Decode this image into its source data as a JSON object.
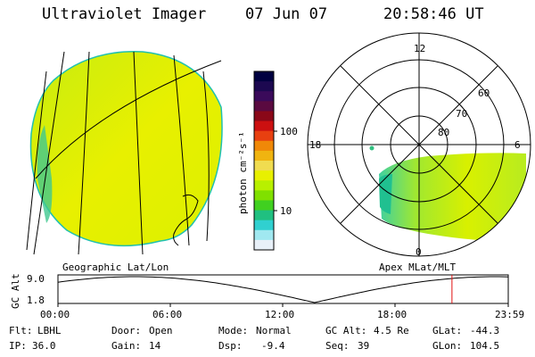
{
  "header": {
    "instrument": "Ultraviolet Imager",
    "date": "07 Jun 07",
    "time": "20:58:46 UT"
  },
  "left_panel": {
    "label": "Geographic Lat/Lon"
  },
  "right_panel": {
    "label": "Apex MLat/MLT",
    "mlt_labels": {
      "top": "12",
      "left": "18",
      "right": "6",
      "bottom": "0"
    },
    "lat_labels": [
      "60",
      "70",
      "80"
    ]
  },
  "colorbar": {
    "unit": "photon cm⁻²s⁻¹",
    "ticks": [
      "100",
      "10"
    ],
    "colors": [
      "#000040",
      "#1c0850",
      "#3a0a5a",
      "#5a0a40",
      "#8a0818",
      "#cc1010",
      "#e84010",
      "#f08808",
      "#f0b410",
      "#f0dc50",
      "#e8f000",
      "#b8f000",
      "#80e000",
      "#40d020",
      "#20c080",
      "#30d0d0",
      "#a0e8f0",
      "#e8f0f8"
    ]
  },
  "altitude_plot": {
    "ylabel": "GC Alt",
    "y_top": "9.0",
    "y_bottom": "1.8",
    "x_ticks": [
      "00:00",
      "06:00",
      "12:00",
      "18:00",
      "23:59"
    ],
    "current_time_fraction": 0.875
  },
  "info": {
    "flt_label": "Flt:",
    "flt_value": "LBHL",
    "ip_label": "IP:",
    "ip_value": "36.0",
    "door_label": "Door:",
    "door_value": "Open",
    "gain_label": "Gain:",
    "gain_value": "14",
    "mode_label": "Mode:",
    "mode_value": "Normal",
    "dsp_label": "Dsp:",
    "dsp_value": "-9.4",
    "gcalt_label": "GC Alt:",
    "gcalt_value": "4.5 Re",
    "seq_label": "Seq:",
    "seq_value": "39",
    "glat_label": "GLat:",
    "glat_value": "-44.3",
    "glon_label": "GLon:",
    "glon_value": "104.5"
  },
  "colors": {
    "image_fill": "#e8f000",
    "image_green": "#b0e820",
    "cyan": "#20c0b0",
    "marker": "#e01010"
  }
}
